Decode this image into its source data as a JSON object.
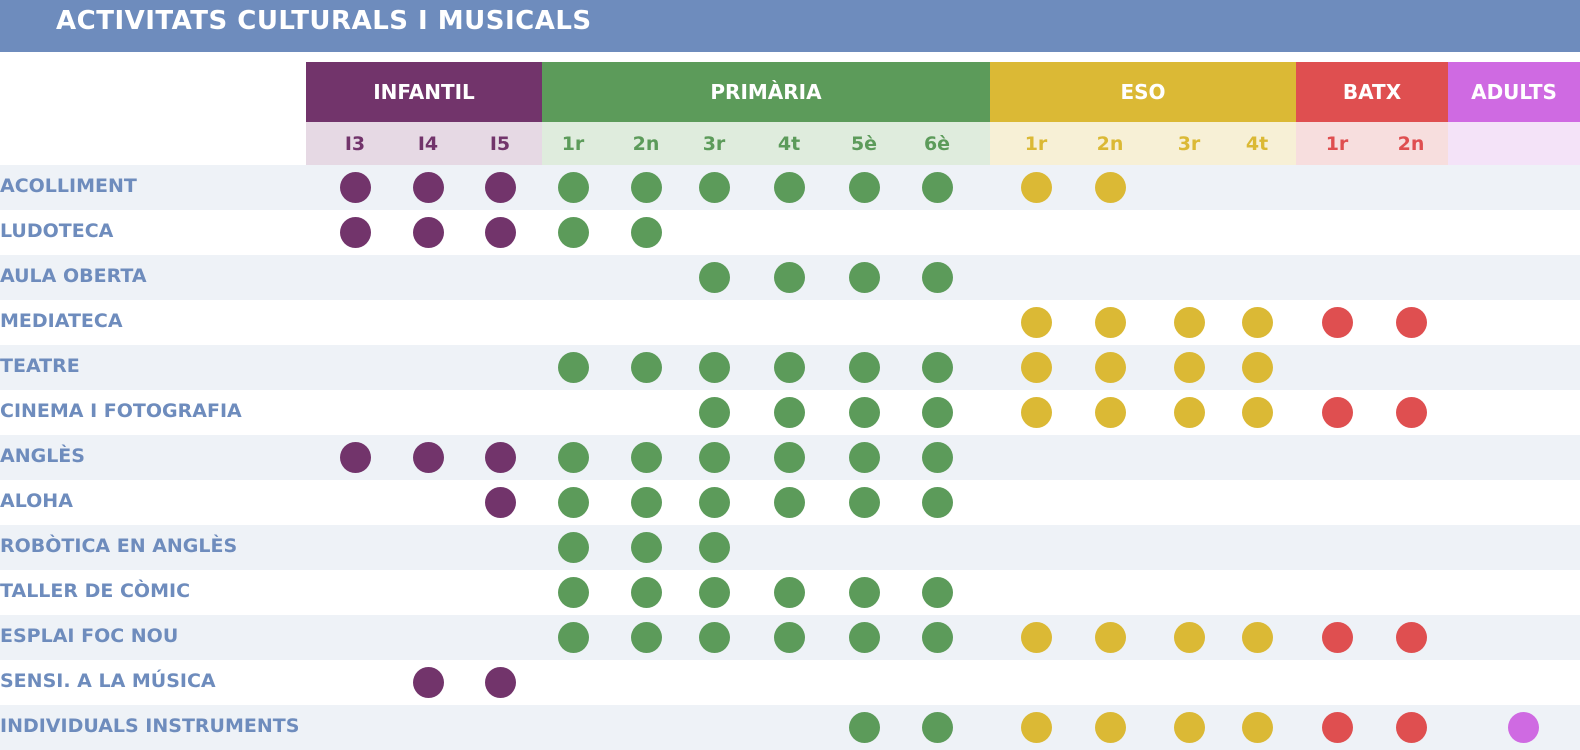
{
  "title": "ACTIVITATS CULTURALS I MUSICALS",
  "colors": {
    "title_bar": "#6e8cbd",
    "label": "#6e8cbd",
    "row_shade": "#eef2f7",
    "infantil": "#72346b",
    "primaria": "#5c9b5a",
    "eso": "#dbb935",
    "batx": "#df4f50",
    "adults": "#cf6ae2"
  },
  "groups": [
    {
      "key": "infantil",
      "label": "INFANTIL",
      "color": "#72346b",
      "sub_bg": "#e6d9e4"
    },
    {
      "key": "primaria",
      "label": "PRIMÀRIA",
      "color": "#5c9b5a",
      "sub_bg": "#dfecdd"
    },
    {
      "key": "eso",
      "label": "ESO",
      "color": "#dbb935",
      "sub_bg": "#f7f0d6"
    },
    {
      "key": "batx",
      "label": "BATX",
      "color": "#df4f50",
      "sub_bg": "#f7dede"
    },
    {
      "key": "adults",
      "label": "ADULTS",
      "color": "#cf6ae2",
      "sub_bg": "#f4e3f8"
    }
  ],
  "columns": [
    {
      "label": "I3",
      "group": "infantil"
    },
    {
      "label": "I4",
      "group": "infantil"
    },
    {
      "label": "I5",
      "group": "infantil"
    },
    {
      "label": "1r",
      "group": "primaria"
    },
    {
      "label": "2n",
      "group": "primaria"
    },
    {
      "label": "3r",
      "group": "primaria"
    },
    {
      "label": "4t",
      "group": "primaria"
    },
    {
      "label": "5è",
      "group": "primaria"
    },
    {
      "label": "6è",
      "group": "primaria"
    },
    {
      "label": "1r",
      "group": "eso"
    },
    {
      "label": "2n",
      "group": "eso"
    },
    {
      "label": "3r",
      "group": "eso"
    },
    {
      "label": "4t",
      "group": "eso"
    },
    {
      "label": "1r",
      "group": "batx"
    },
    {
      "label": "2n",
      "group": "batx"
    },
    {
      "label": "",
      "group": "adults"
    }
  ],
  "rows": [
    {
      "name": "ACOLLIMENT",
      "cols": [
        0,
        1,
        2,
        3,
        4,
        5,
        6,
        7,
        8,
        9,
        10
      ]
    },
    {
      "name": "LUDOTECA",
      "cols": [
        0,
        1,
        2,
        3,
        4
      ]
    },
    {
      "name": "AULA OBERTA",
      "cols": [
        5,
        6,
        7,
        8
      ]
    },
    {
      "name": "MEDIATECA",
      "cols": [
        9,
        10,
        11,
        12,
        13,
        14
      ]
    },
    {
      "name": "TEATRE",
      "cols": [
        3,
        4,
        5,
        6,
        7,
        8,
        9,
        10,
        11,
        12
      ]
    },
    {
      "name": "CINEMA I FOTOGRAFIA",
      "cols": [
        5,
        6,
        7,
        8,
        9,
        10,
        11,
        12,
        13,
        14
      ]
    },
    {
      "name": "ANGLÈS",
      "cols": [
        0,
        1,
        2,
        3,
        4,
        5,
        6,
        7,
        8
      ]
    },
    {
      "name": "ALOHA",
      "cols": [
        2,
        3,
        4,
        5,
        6,
        7,
        8
      ]
    },
    {
      "name": "ROBÒTICA EN ANGLÈS",
      "cols": [
        3,
        4,
        5
      ]
    },
    {
      "name": "TALLER DE CÒMIC",
      "cols": [
        3,
        4,
        5,
        6,
        7,
        8
      ]
    },
    {
      "name": "ESPLAI FOC NOU",
      "cols": [
        3,
        4,
        5,
        6,
        7,
        8,
        9,
        10,
        11,
        12,
        13,
        14
      ]
    },
    {
      "name": "SENSI. A LA MÚSICA",
      "cols": [
        1,
        2
      ]
    },
    {
      "name": "INDIVIDUALS INSTRUMENTS",
      "cols": [
        7,
        8,
        9,
        10,
        11,
        12,
        13,
        14,
        15
      ]
    }
  ]
}
